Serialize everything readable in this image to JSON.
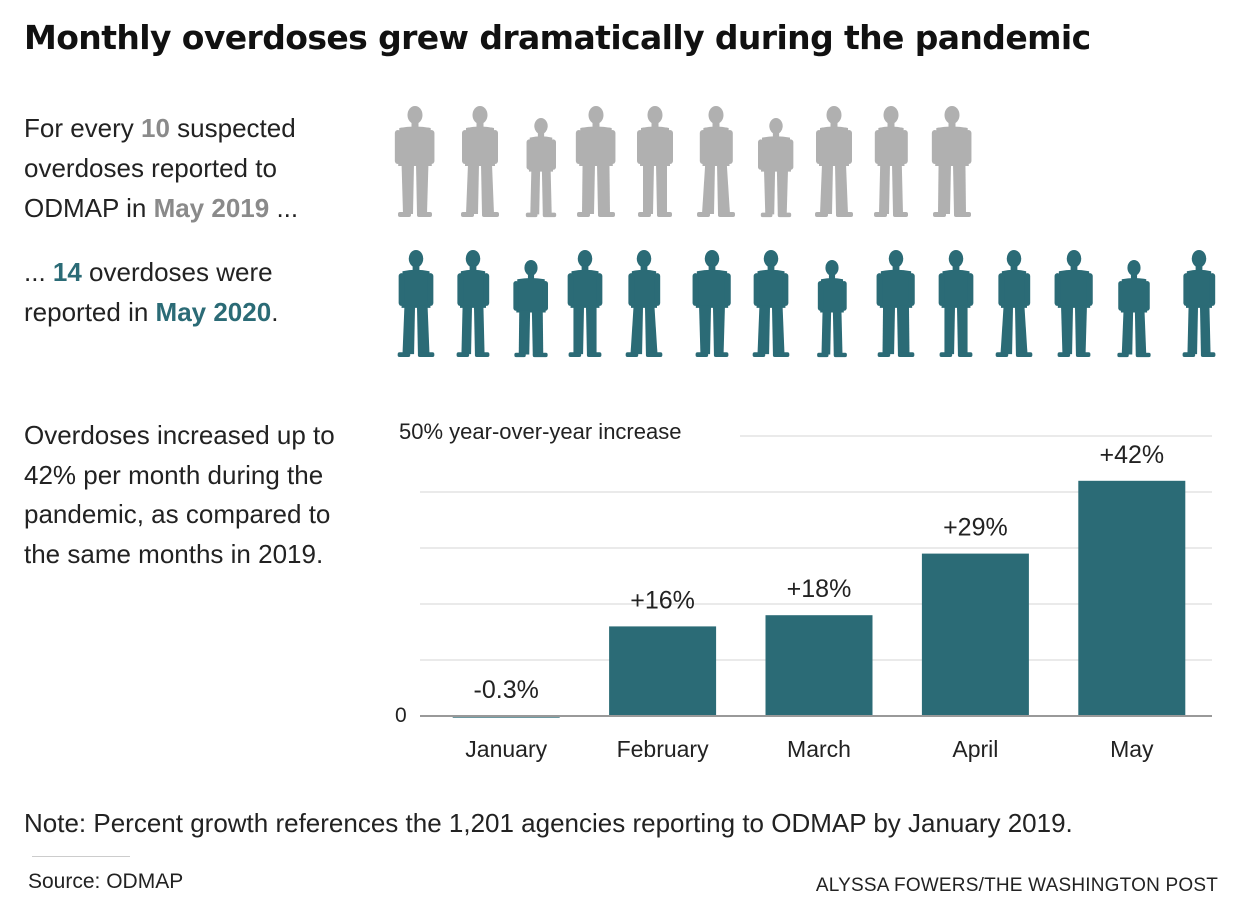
{
  "title": "Monthly overdoses grew dramatically during the pandemic",
  "lede1": {
    "prefix": "For every ",
    "count": "10",
    "mid": " suspected overdoses reported to ODMAP in ",
    "period": "May 2019",
    "suffix": " ..."
  },
  "lede2": {
    "prefix": "... ",
    "count": "14",
    "mid": " overdoses were reported in ",
    "period": "May 2020",
    "suffix": "."
  },
  "lede3": "Overdoses increased up to 42% per month during the pandemic, as compared to the same months in 2019.",
  "people": {
    "gray_count": 10,
    "teal_count": 14,
    "gray_color": "#b0b0b0",
    "teal_color": "#2b6b76"
  },
  "chart_data": {
    "type": "bar",
    "categories": [
      "January",
      "February",
      "March",
      "April",
      "May"
    ],
    "values": [
      -0.3,
      16,
      18,
      29,
      42
    ],
    "data_labels": [
      "-0.3%",
      "+16%",
      "+18%",
      "+29%",
      "+42%"
    ],
    "ylabel": "50% year-over-year increase",
    "yticks": [
      "0"
    ],
    "ylim": [
      0,
      50
    ],
    "grid": true,
    "bar_color": "#2b6b76",
    "gridline_step": 10
  },
  "note": "Note: Percent growth references the 1,201 agencies reporting to ODMAP by January 2019.",
  "source": "Source: ODMAP",
  "credit": "ALYSSA FOWERS/THE WASHINGTON POST"
}
